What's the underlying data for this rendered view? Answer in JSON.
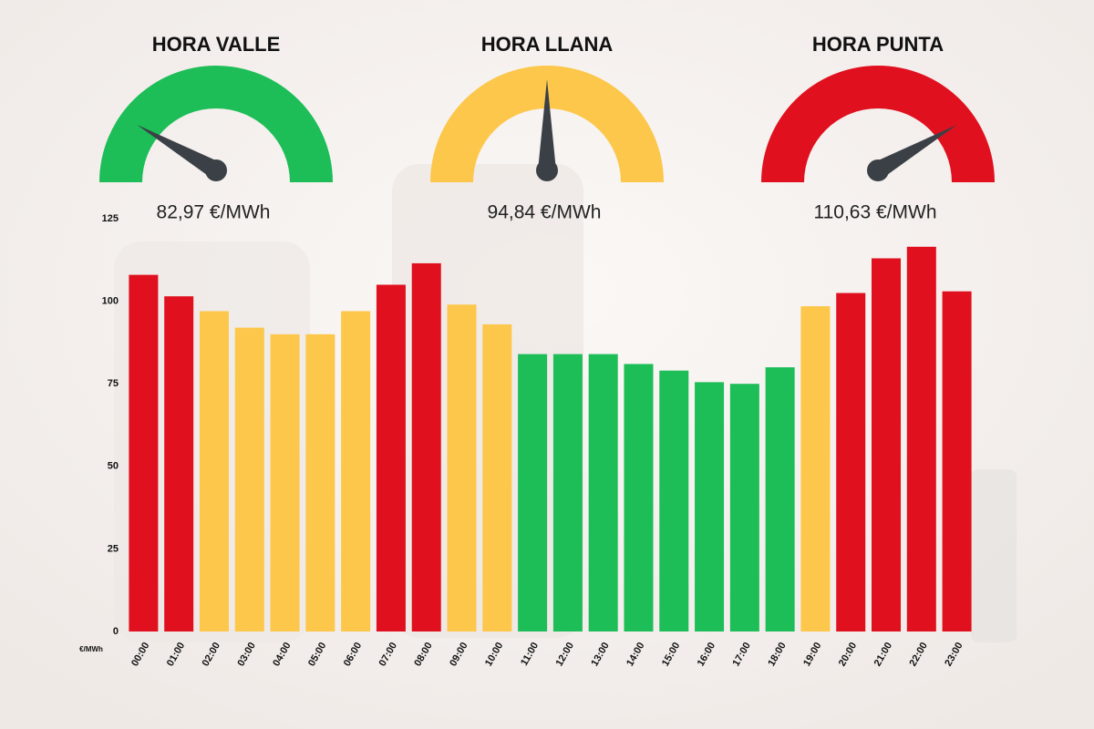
{
  "chart_data": {
    "type": "bar",
    "y_label": "€/MWh",
    "categories": [
      "00:00",
      "01:00",
      "02:00",
      "03:00",
      "04:00",
      "05:00",
      "06:00",
      "07:00",
      "08:00",
      "09:00",
      "10:00",
      "11:00",
      "12:00",
      "13:00",
      "14:00",
      "15:00",
      "16:00",
      "17:00",
      "18:00",
      "19:00",
      "20:00",
      "21:00",
      "22:00",
      "23:00"
    ],
    "values": [
      108,
      101.5,
      97,
      92,
      90,
      90,
      97,
      105,
      111.5,
      99,
      93,
      84,
      84,
      84,
      81,
      79,
      75.5,
      75,
      80,
      98.5,
      102.5,
      113,
      116.5,
      103
    ],
    "colors": [
      "#e0101e",
      "#e0101e",
      "#fcc74a",
      "#fcc74a",
      "#fcc74a",
      "#fcc74a",
      "#fcc74a",
      "#e0101e",
      "#e0101e",
      "#fcc74a",
      "#fcc74a",
      "#1dbd58",
      "#1dbd58",
      "#1dbd58",
      "#1dbd58",
      "#1dbd58",
      "#1dbd58",
      "#1dbd58",
      "#1dbd58",
      "#fcc74a",
      "#e0101e",
      "#e0101e",
      "#e0101e",
      "#e0101e"
    ],
    "ylim": [
      0,
      125
    ],
    "yticks": [
      0,
      25,
      50,
      75,
      100,
      125
    ],
    "gauges": [
      {
        "title": "HORA VALLE",
        "label": "82,97 €/MWh",
        "color": "#1dbd58"
      },
      {
        "title": "HORA LLANA",
        "label": "94,84 €/MWh",
        "color": "#fcc74a"
      },
      {
        "title": "HORA PUNTA",
        "label": "110,63 €/MWh",
        "color": "#e0101e"
      }
    ]
  }
}
